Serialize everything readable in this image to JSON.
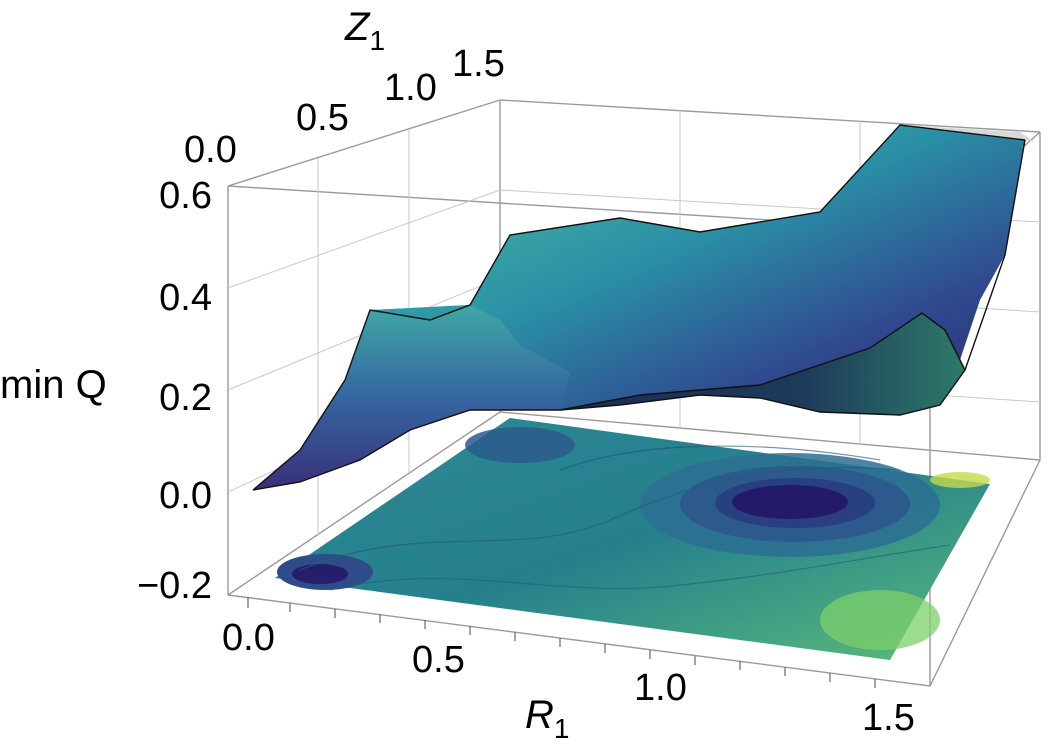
{
  "chart_data": {
    "type": "surface3d",
    "zlabel": "min Q",
    "xlabel_main": "R",
    "xlabel_sub": "1",
    "ylabel_main": "Z",
    "ylabel_sub": "1",
    "x_range": [
      0.0,
      1.5
    ],
    "y_range": [
      0.0,
      1.5
    ],
    "z_range": [
      -0.2,
      0.6
    ],
    "x_ticks": [
      "0.0",
      "0.5",
      "1.0",
      "1.5"
    ],
    "y_ticks": [
      "0.0",
      "0.5",
      "1.0",
      "1.5"
    ],
    "z_ticks": [
      "−0.2",
      "0.0",
      "0.2",
      "0.4",
      "0.6"
    ],
    "contour_projection": "bottom",
    "colormap": "viridis",
    "grid": true,
    "surface_edges": {
      "front_edge_R": [
        0.0,
        0.25,
        0.5,
        0.75,
        1.0,
        1.25,
        1.5
      ],
      "front_edge_minQ": [
        0.0,
        0.04,
        0.1,
        0.17,
        0.22,
        0.2,
        0.23
      ],
      "left_edge_Z": [
        0.0,
        0.25,
        0.5,
        0.75,
        1.0,
        1.25,
        1.5
      ],
      "left_edge_minQ": [
        0.0,
        0.05,
        0.32,
        0.3,
        0.33,
        0.39,
        0.43
      ]
    }
  }
}
